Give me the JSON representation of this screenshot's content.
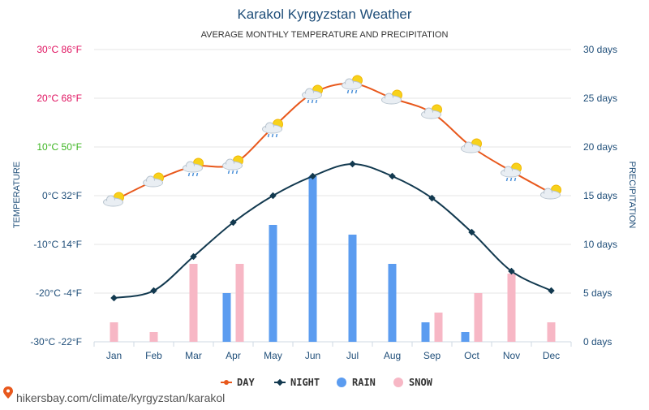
{
  "chart_data": {
    "type": "line",
    "title": "Karakol Kyrgyzstan Weather",
    "subtitle": "AVERAGE MONTHLY TEMPERATURE AND PRECIPITATION",
    "categories": [
      "Jan",
      "Feb",
      "Mar",
      "Apr",
      "May",
      "Jun",
      "Jul",
      "Aug",
      "Sep",
      "Oct",
      "Nov",
      "Dec"
    ],
    "left_axis": {
      "label": "TEMPERATURE",
      "range_c": [
        -30,
        30
      ],
      "ticks": [
        {
          "value": 30,
          "label": "30°C 86°F",
          "color": "#e0115f"
        },
        {
          "value": 20,
          "label": "20°C 68°F",
          "color": "#e0115f"
        },
        {
          "value": 10,
          "label": "10°C 50°F",
          "color": "#3cb521"
        },
        {
          "value": 0,
          "label": "0°C 32°F",
          "color": "#1f4e79"
        },
        {
          "value": -10,
          "label": "-10°C 14°F",
          "color": "#1f4e79"
        },
        {
          "value": -20,
          "label": "-20°C -4°F",
          "color": "#1f4e79"
        },
        {
          "value": -30,
          "label": "-30°C -22°F",
          "color": "#1f4e79"
        }
      ]
    },
    "right_axis": {
      "label": "PRECIPITATION",
      "range_days": [
        0,
        30
      ],
      "ticks": [
        {
          "value": 30,
          "label": "30 days"
        },
        {
          "value": 25,
          "label": "25 days"
        },
        {
          "value": 20,
          "label": "20 days"
        },
        {
          "value": 15,
          "label": "15 days"
        },
        {
          "value": 10,
          "label": "10 days"
        },
        {
          "value": 5,
          "label": "5 days"
        },
        {
          "value": 0,
          "label": "0 days"
        }
      ]
    },
    "series": [
      {
        "name": "DAY",
        "kind": "line",
        "axis": "left",
        "color": "#e8581c",
        "values": [
          -1,
          3,
          6,
          6.5,
          14,
          21,
          23,
          20,
          17,
          10,
          5,
          0.5
        ]
      },
      {
        "name": "NIGHT",
        "kind": "line",
        "axis": "left",
        "color": "#12394f",
        "values": [
          -21,
          -19.5,
          -12.5,
          -5.5,
          0,
          4,
          6.5,
          4,
          -0.5,
          -7.5,
          -15.5,
          -19.5
        ]
      },
      {
        "name": "RAIN",
        "kind": "bar",
        "axis": "right",
        "color": "#5b9cf0",
        "values": [
          0,
          0,
          0,
          5,
          12,
          17,
          11,
          8,
          2,
          1,
          0,
          0
        ]
      },
      {
        "name": "SNOW",
        "kind": "bar",
        "axis": "right",
        "color": "#f7b7c5",
        "values": [
          2,
          1,
          8,
          8,
          0,
          0,
          0,
          0,
          3,
          5,
          7,
          2
        ]
      }
    ],
    "weather_icons": [
      "sun-cloud-icon",
      "sun-cloud-icon",
      "sun-cloud-rain-icon",
      "sun-cloud-rain-icon",
      "sun-cloud-rain-icon",
      "sun-cloud-rain-icon",
      "sun-cloud-rain-icon",
      "sun-cloud-icon",
      "sun-cloud-icon",
      "sun-cloud-icon",
      "sun-cloud-rain-icon",
      "sun-cloud-icon"
    ],
    "grid": true,
    "legend_position": "bottom-center"
  },
  "watermark": {
    "text": "hikersbay.com/climate/kyrgyzstan/karakol",
    "icon": "location-pin-icon"
  }
}
